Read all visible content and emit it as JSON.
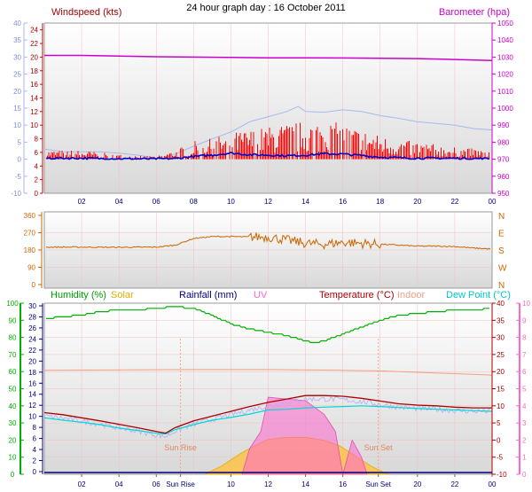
{
  "title": "24 hour graph day : 16 October 2011",
  "colors": {
    "wind_speed": "#ff0000",
    "wind_avg": "#0000cc",
    "wind_axis": "#a8b8f0",
    "barometer": "#cc00cc",
    "direction": "#cc6600",
    "humidity": "#00b000",
    "solar": "#ffc040",
    "rainfall": "#000080",
    "uv": "#ff66cc",
    "temperature": "#aa0000",
    "indoor": "#f0a080",
    "dew_point": "#00d8d8",
    "plot_bg_top": "#ffffff",
    "plot_bg_bottom": "#d8d8d8",
    "grid": "#f0c0c0",
    "guide": "#f0a070"
  },
  "x_ticks": [
    "02",
    "04",
    "06",
    "Sun Rise",
    "10",
    "12",
    "14",
    "16",
    "Sun Set",
    "20",
    "22",
    "00"
  ],
  "top_x_ticks": [
    "02",
    "04",
    "06",
    "08",
    "10",
    "12",
    "14",
    "16",
    "18",
    "20",
    "22",
    "00"
  ],
  "chart_data": [
    {
      "type": "line",
      "id": "wind-baro",
      "legend": {
        "left": "Windspeed (kts)",
        "right": "Barometer (hpa)"
      },
      "y_left_outer": {
        "ticks": [
          "-10",
          "-5",
          "0",
          "5",
          "10",
          "15",
          "20",
          "25",
          "30",
          "35",
          "40"
        ]
      },
      "y_left_inner": {
        "ticks": [
          "0",
          "2",
          "4",
          "6",
          "8",
          "10",
          "12",
          "14",
          "16",
          "18",
          "20",
          "22",
          "24"
        ]
      },
      "y_right": {
        "ticks": [
          "950",
          "960",
          "970",
          "980",
          "990",
          "1000",
          "1010",
          "1020",
          "1030",
          "1040",
          "1050"
        ]
      },
      "xlim_hours": [
        0,
        24
      ],
      "series": [
        {
          "name": "Barometer (hpa)",
          "key": "baro",
          "x": [
            0,
            2,
            4,
            6,
            8,
            10,
            12,
            14,
            16,
            18,
            20,
            22,
            24
          ],
          "values": [
            1031,
            1031,
            1030.6,
            1030.2,
            1030,
            1029.8,
            1029.6,
            1029.6,
            1029.5,
            1029.3,
            1029.1,
            1028.6,
            1028
          ]
        },
        {
          "x": [
            0,
            1,
            2,
            3,
            4,
            5,
            6,
            6.5,
            7,
            8,
            9,
            10,
            11,
            12,
            13,
            13.6,
            14,
            15,
            16,
            17,
            18,
            19,
            20,
            21,
            22,
            23,
            24
          ],
          "values": [
            3,
            2.2,
            2.2,
            2.2,
            1.8,
            1.2,
            0.3,
            0.3,
            1.5,
            3.8,
            6,
            8,
            11,
            12.5,
            14,
            15.5,
            14,
            13.8,
            14.5,
            14,
            12.8,
            12,
            11,
            10.5,
            10,
            9,
            8.6
          ]
        },
        {
          "name": "Windspeed (kts)",
          "key": "gust",
          "x": [
            0,
            2,
            4,
            6,
            7,
            8,
            9,
            10,
            11,
            12,
            13,
            14,
            15,
            16,
            17,
            18,
            19,
            20,
            21,
            22,
            23,
            24
          ],
          "values": [
            1.5,
            1.5,
            0.8,
            0.5,
            1.5,
            3,
            3.5,
            4.5,
            5,
            5.5,
            6,
            6.5,
            6.5,
            6,
            5,
            4,
            3.2,
            3,
            2.5,
            2,
            1.8,
            1.5
          ]
        },
        {
          "x": [
            0,
            2,
            4,
            6,
            7,
            8,
            9,
            10,
            11,
            12,
            13,
            14,
            15,
            16,
            17,
            18,
            19,
            20,
            21,
            22,
            23,
            24
          ],
          "values": [
            0.3,
            0.3,
            0.1,
            0.1,
            0.2,
            0.8,
            1.2,
            1.8,
            1.3,
            1.2,
            1.0,
            1.2,
            1.6,
            1.5,
            1.1,
            0.6,
            0.4,
            0.3,
            0.3,
            0.3,
            0.2,
            0.2
          ]
        }
      ]
    },
    {
      "type": "line",
      "id": "direction",
      "y_left": {
        "ticks": [
          "0",
          "90",
          "180",
          "270",
          "360"
        ]
      },
      "y_right_labels": [
        "N",
        "W",
        "S",
        "E",
        "N"
      ],
      "ylim": [
        0,
        360
      ],
      "series": [
        {
          "key": "dir",
          "x": [
            0,
            2,
            4,
            6,
            7,
            8,
            9,
            10,
            11,
            12,
            13,
            14,
            15,
            16,
            17,
            18,
            19,
            20,
            21,
            22,
            23,
            24
          ],
          "values": [
            195,
            195,
            194,
            195,
            205,
            240,
            250,
            250,
            248,
            248,
            232,
            215,
            210,
            220,
            215,
            210,
            205,
            200,
            200,
            198,
            190,
            185
          ]
        }
      ]
    },
    {
      "type": "line",
      "id": "temp-hum",
      "legend": [
        "Humidity (%)",
        "Solar",
        "Rainfall (mm)",
        "UV",
        "Temperature (°C)",
        "Indoor",
        "Dew Point (°C)"
      ],
      "y_hum": {
        "ticks": [
          "0",
          "10",
          "20",
          "30",
          "40",
          "50",
          "60",
          "70",
          "80",
          "90",
          "100"
        ]
      },
      "y_rain": {
        "ticks": [
          "0",
          "2",
          "4",
          "6",
          "8",
          "10",
          "12",
          "14",
          "16",
          "18",
          "20",
          "22",
          "24",
          "26",
          "28",
          "30"
        ]
      },
      "y_temp": {
        "ticks": [
          "-10",
          "-5",
          "0",
          "5",
          "10",
          "15",
          "20",
          "25",
          "30",
          "35",
          "40"
        ]
      },
      "y_uv": {
        "ticks": [
          "0",
          "1",
          "2",
          "3",
          "4",
          "5",
          "6",
          "7",
          "8",
          "9",
          "10"
        ]
      },
      "sun_labels": {
        "rise": "Sun Rise",
        "set": "Sun Set"
      },
      "series": [
        {
          "name": "Humidity (%)",
          "key": "hum",
          "x": [
            0,
            1,
            2,
            3,
            4,
            5,
            6,
            7,
            8,
            9,
            10,
            11,
            12,
            13,
            14,
            14.5,
            15,
            16,
            17,
            18,
            19,
            20,
            21,
            22,
            23,
            24
          ],
          "values": [
            91,
            92,
            93,
            95,
            96,
            96,
            97,
            98,
            97,
            93,
            88,
            85,
            83,
            81,
            78,
            77,
            78,
            82,
            86,
            90,
            93,
            94,
            95,
            96,
            96,
            97
          ]
        },
        {
          "name": "Temperature (°C)",
          "key": "temp",
          "x": [
            0,
            1,
            2,
            3,
            4,
            5,
            6,
            6.5,
            7,
            8,
            9,
            10,
            11,
            12,
            13,
            14,
            15,
            16,
            17,
            18,
            19,
            20,
            21,
            22,
            23,
            24
          ],
          "values": [
            8,
            7.4,
            6.5,
            5.6,
            4.6,
            3.6,
            2.5,
            2,
            3.6,
            5.6,
            7,
            8.4,
            9.8,
            11,
            12,
            13,
            13,
            12.8,
            12.2,
            11.4,
            10.6,
            10.2,
            10,
            9.6,
            9.4,
            9.4
          ]
        },
        {
          "name": "Dew Point (°C)",
          "key": "dew",
          "x": [
            0,
            1,
            2,
            3,
            4,
            5,
            6,
            6.5,
            7,
            8,
            9,
            10,
            11,
            12,
            13,
            14,
            15,
            16,
            17,
            18,
            19,
            20,
            21,
            22,
            23,
            24
          ],
          "values": [
            6.5,
            5.8,
            5.2,
            4.5,
            3.5,
            2.8,
            2,
            1.8,
            3,
            4.5,
            5.8,
            6.6,
            7.6,
            8.8,
            9,
            9.4,
            9.6,
            9.8,
            10,
            9.8,
            9.5,
            9.2,
            9,
            8.8,
            8.6,
            8.4
          ]
        },
        {
          "name": "Indoor",
          "key": "indoor",
          "x": [
            0,
            4,
            8,
            12,
            16,
            18,
            20,
            22,
            24
          ],
          "values": [
            20.4,
            20.5,
            20.6,
            20.6,
            20.4,
            20.2,
            19.8,
            19.4,
            19.0
          ]
        },
        {
          "name": "Solar",
          "key": "solar",
          "x": [
            8.6,
            9.5,
            10.5,
            11.5,
            12,
            13,
            14,
            15,
            15.8,
            16.5,
            17.5,
            18.4
          ],
          "values": [
            0,
            0.8,
            2,
            3,
            3.4,
            3.6,
            3.6,
            3.3,
            2.8,
            2,
            0.8,
            0
          ]
        },
        {
          "name": "UV",
          "key": "uv",
          "x": [
            10.6,
            11,
            11.6,
            12,
            13,
            14,
            15,
            15.6,
            16,
            16.5,
            17,
            17.3
          ],
          "values": [
            0,
            1.5,
            2.5,
            4.5,
            4.4,
            4.3,
            3.5,
            2.5,
            0,
            2,
            1,
            0
          ]
        },
        {
          "name": "Rainfall (mm)",
          "key": "rain",
          "x": [
            0,
            24
          ],
          "values": [
            0,
            0
          ]
        }
      ]
    }
  ]
}
